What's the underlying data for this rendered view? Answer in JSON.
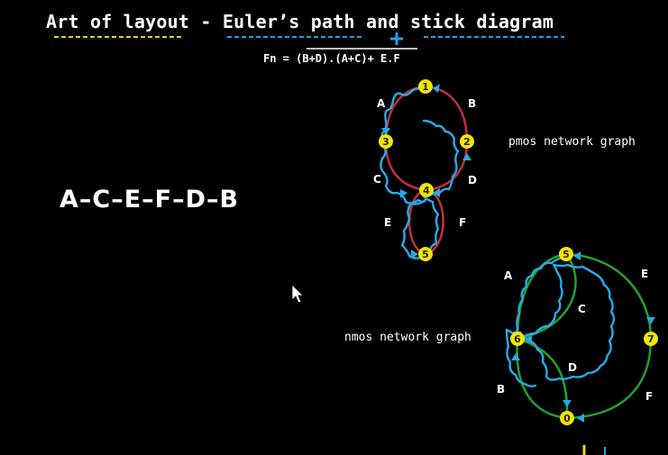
{
  "title": "Art of layout - Euler’s path and stick diagram",
  "formula": "Fn = (B+D).(A+C)+ E.F",
  "sequence": "A–C–E–F–D–B",
  "pmos": {
    "caption": "pmos network graph",
    "nodes": [
      "1",
      "2",
      "3",
      "4",
      "5"
    ],
    "edges": [
      "A",
      "B",
      "C",
      "D",
      "E",
      "F"
    ]
  },
  "nmos": {
    "caption": "nmos network graph",
    "nodes": [
      "5",
      "6",
      "7",
      "0"
    ],
    "edges": [
      "A",
      "C",
      "E",
      "D",
      "B",
      "F"
    ]
  },
  "colors": {
    "underline_yellow": "#e8d21c",
    "underline_blue": "#1fa2e0",
    "path_blue": "#29a9e6",
    "pmos_edge": "#c0303a",
    "nmos_edge": "#1fa32e",
    "node_fill": "#f3e600"
  }
}
